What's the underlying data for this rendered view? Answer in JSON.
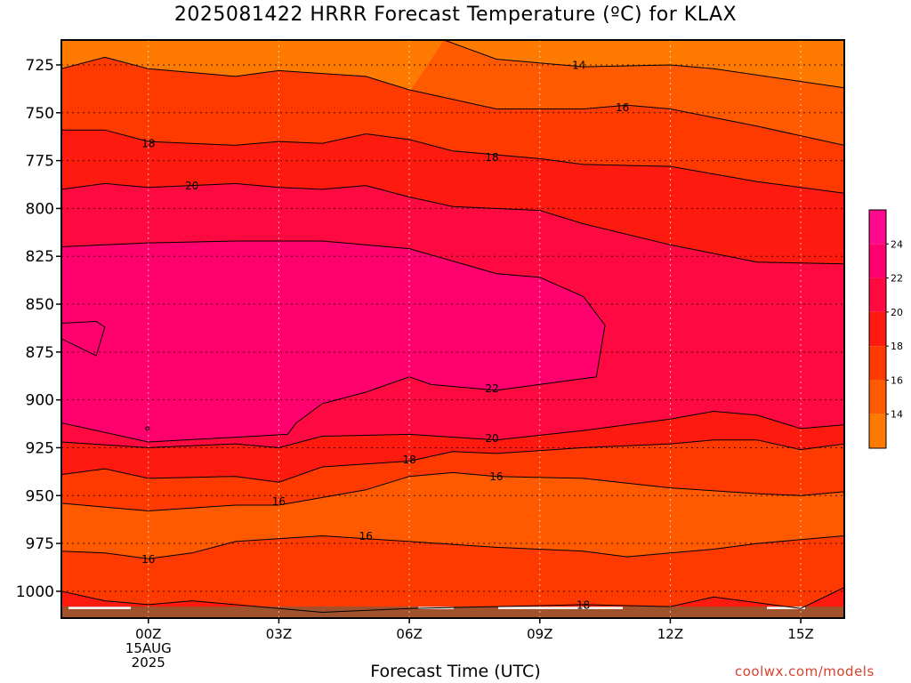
{
  "title": "2025081422 HRRR Forecast Temperature (ºC) for KLAX",
  "xlabel": "Forecast Time (UTC)",
  "watermark": "coolwx.com/models",
  "colors": {
    "lt14": "#ff7a00",
    "b14_16": "#ff5a00",
    "b16_18": "#ff3a00",
    "b18_20": "#ff1a10",
    "b20_22": "#ff0a40",
    "b22_24": "#ff006e",
    "ge24": "#ff0a8c",
    "ground": "#a0522d"
  },
  "chart_data": {
    "type": "heatmap",
    "subtype": "filled-contour time-height section",
    "title": "2025081422 HRRR Forecast Temperature (ºC) for KLAX",
    "xlabel": "Forecast Time (UTC)",
    "ylabel": "",
    "x_units": "hours after 2025-08-15 00Z",
    "y_units": "hPa",
    "xlim": [
      -2,
      16
    ],
    "ylim": [
      1014,
      712
    ],
    "x_ticks": [
      {
        "x": 0,
        "lines": [
          "00Z",
          "15AUG",
          "2025"
        ]
      },
      {
        "x": 3,
        "lines": [
          "03Z"
        ]
      },
      {
        "x": 6,
        "lines": [
          "06Z"
        ]
      },
      {
        "x": 9,
        "lines": [
          "09Z"
        ]
      },
      {
        "x": 12,
        "lines": [
          "12Z"
        ]
      },
      {
        "x": 15,
        "lines": [
          "15Z"
        ]
      }
    ],
    "y_ticks": [
      725,
      750,
      775,
      800,
      825,
      850,
      875,
      900,
      925,
      950,
      975,
      1000
    ],
    "grid": true,
    "contour_levels": [
      14,
      16,
      18,
      20,
      22,
      24
    ],
    "colorbar": {
      "ticks": [
        14,
        16,
        18,
        20,
        22,
        24
      ],
      "placement": "right"
    },
    "surface_pressure": 1008,
    "contours": [
      {
        "label": "14",
        "points": [
          [
            6.8,
            712
          ],
          [
            8,
            722
          ],
          [
            10,
            726
          ],
          [
            12,
            725
          ],
          [
            13,
            727
          ],
          [
            16,
            737
          ]
        ]
      },
      {
        "label": "16",
        "points": [
          [
            -2,
            727
          ],
          [
            -1,
            721
          ],
          [
            0,
            727
          ],
          [
            2,
            731
          ],
          [
            3,
            728
          ],
          [
            5,
            731
          ],
          [
            6,
            738
          ],
          [
            8,
            748
          ],
          [
            10,
            748
          ],
          [
            11,
            746
          ],
          [
            12,
            748
          ],
          [
            14,
            757
          ],
          [
            16,
            767
          ]
        ]
      },
      {
        "label": "18",
        "points": [
          [
            -2,
            759
          ],
          [
            -1,
            759
          ],
          [
            0,
            765
          ],
          [
            2,
            767
          ],
          [
            3,
            765
          ],
          [
            4,
            766
          ],
          [
            5,
            761
          ],
          [
            6,
            764
          ],
          [
            7,
            770
          ],
          [
            9,
            774
          ],
          [
            10,
            777
          ],
          [
            12,
            778
          ],
          [
            14,
            786
          ],
          [
            16,
            792
          ]
        ]
      },
      {
        "label": "20",
        "points": [
          [
            -2,
            790
          ],
          [
            -1,
            787
          ],
          [
            0,
            789
          ],
          [
            2,
            787
          ],
          [
            3,
            789
          ],
          [
            4,
            790
          ],
          [
            5,
            788
          ],
          [
            6,
            794
          ],
          [
            7,
            799
          ],
          [
            9,
            801
          ],
          [
            10,
            808
          ],
          [
            12,
            819
          ],
          [
            14,
            828
          ],
          [
            16,
            829
          ]
        ]
      },
      {
        "label": "22",
        "points": [
          [
            -2,
            820
          ],
          [
            -1,
            819
          ],
          [
            0,
            818
          ],
          [
            2,
            817
          ],
          [
            3,
            817
          ],
          [
            4,
            817
          ],
          [
            6,
            821
          ],
          [
            8,
            834
          ],
          [
            9,
            836
          ],
          [
            10,
            846
          ],
          [
            10.5,
            861
          ],
          [
            10.3,
            888
          ],
          [
            8,
            895
          ],
          [
            6.5,
            892
          ],
          [
            6,
            888
          ],
          [
            5,
            896
          ],
          [
            4,
            902
          ],
          [
            3.4,
            912
          ],
          [
            3.2,
            918
          ],
          [
            0,
            922
          ],
          [
            -2,
            912
          ]
        ]
      },
      {
        "label": "22",
        "points": [
          [
            -2,
            860
          ],
          [
            -1.2,
            859
          ],
          [
            -1,
            862
          ],
          [
            -1.2,
            877
          ],
          [
            -2,
            868
          ]
        ]
      },
      {
        "label": "20",
        "points": [
          [
            -2,
            922
          ],
          [
            0,
            925
          ],
          [
            2,
            923
          ],
          [
            3,
            925
          ],
          [
            4,
            919
          ],
          [
            6,
            918
          ],
          [
            8,
            921
          ],
          [
            10,
            916
          ],
          [
            12,
            910
          ],
          [
            13,
            906
          ],
          [
            14,
            908
          ],
          [
            15,
            915
          ],
          [
            16,
            913
          ]
        ]
      },
      {
        "label": "18",
        "points": [
          [
            -2,
            939
          ],
          [
            -1,
            936
          ],
          [
            0,
            941
          ],
          [
            2,
            940
          ],
          [
            3,
            943
          ],
          [
            4,
            935
          ],
          [
            6,
            932
          ],
          [
            7,
            927
          ],
          [
            8,
            928
          ],
          [
            10,
            925
          ],
          [
            12,
            923
          ],
          [
            13,
            921
          ],
          [
            14,
            921
          ],
          [
            15,
            926
          ],
          [
            16,
            923
          ]
        ]
      },
      {
        "label": "16",
        "points": [
          [
            -2,
            954
          ],
          [
            0,
            958
          ],
          [
            2,
            955
          ],
          [
            3,
            955
          ],
          [
            4,
            951
          ],
          [
            5,
            947
          ],
          [
            6,
            940
          ],
          [
            7,
            938
          ],
          [
            8,
            940
          ],
          [
            10,
            941
          ],
          [
            12,
            946
          ],
          [
            14,
            949
          ],
          [
            15,
            950
          ],
          [
            16,
            948
          ]
        ]
      },
      {
        "label": "16",
        "points": [
          [
            -2,
            979
          ],
          [
            -1,
            980
          ],
          [
            0,
            983
          ],
          [
            1,
            980
          ],
          [
            2,
            974
          ],
          [
            4,
            971
          ],
          [
            6,
            974
          ],
          [
            8,
            977
          ],
          [
            10,
            979
          ],
          [
            11,
            982
          ],
          [
            12,
            980
          ],
          [
            13,
            978
          ],
          [
            14,
            975
          ],
          [
            15,
            973
          ],
          [
            16,
            971
          ]
        ]
      },
      {
        "label": "18",
        "points": [
          [
            -2,
            1000
          ],
          [
            -1,
            1005
          ],
          [
            0,
            1007
          ],
          [
            1,
            1005
          ],
          [
            2,
            1007
          ],
          [
            4,
            1011
          ],
          [
            6,
            1009
          ],
          [
            8,
            1008
          ],
          [
            10,
            1007
          ],
          [
            12,
            1008
          ],
          [
            13,
            1003
          ],
          [
            14,
            1006
          ],
          [
            15,
            1009
          ],
          [
            16,
            998
          ]
        ]
      }
    ],
    "contour_labels": [
      {
        "text": "14",
        "x": 9.9,
        "y": 725
      },
      {
        "text": "16",
        "x": 10.9,
        "y": 747
      },
      {
        "text": "18",
        "x": 0,
        "y": 766
      },
      {
        "text": "18",
        "x": 7.9,
        "y": 773
      },
      {
        "text": "20",
        "x": 1.0,
        "y": 788
      },
      {
        "text": "22",
        "x": 7.9,
        "y": 894
      },
      {
        "text": "20",
        "x": 7.9,
        "y": 920
      },
      {
        "text": "18",
        "x": 6.0,
        "y": 931
      },
      {
        "text": "16",
        "x": 8.0,
        "y": 940
      },
      {
        "text": "16",
        "x": 3.0,
        "y": 953
      },
      {
        "text": "16",
        "x": 5.0,
        "y": 971
      },
      {
        "text": "16",
        "x": 0,
        "y": 983
      },
      {
        "text": "18",
        "x": 10.0,
        "y": 1007
      }
    ]
  }
}
